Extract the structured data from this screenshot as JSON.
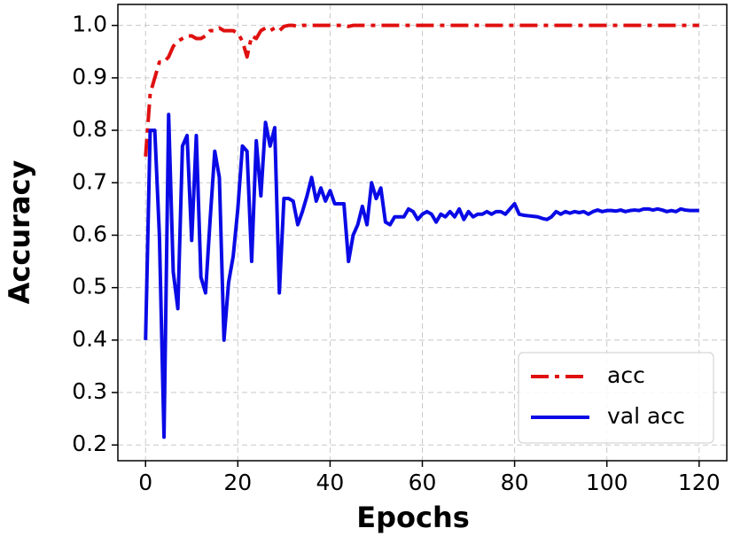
{
  "chart_data": {
    "type": "line",
    "xlabel": "Epochs",
    "ylabel": "Accuracy",
    "x": [
      0,
      1,
      2,
      3,
      4,
      5,
      6,
      7,
      8,
      9,
      10,
      11,
      12,
      13,
      14,
      15,
      16,
      17,
      18,
      19,
      20,
      21,
      22,
      23,
      24,
      25,
      26,
      27,
      28,
      29,
      30,
      31,
      32,
      33,
      34,
      35,
      36,
      37,
      38,
      39,
      40,
      41,
      42,
      43,
      44,
      45,
      46,
      47,
      48,
      49,
      50,
      51,
      52,
      53,
      54,
      55,
      56,
      57,
      58,
      59,
      60,
      61,
      62,
      63,
      64,
      65,
      66,
      67,
      68,
      69,
      70,
      71,
      72,
      73,
      74,
      75,
      76,
      77,
      78,
      79,
      80,
      81,
      82,
      83,
      84,
      85,
      86,
      87,
      88,
      89,
      90,
      91,
      92,
      93,
      94,
      95,
      96,
      97,
      98,
      99,
      100,
      101,
      102,
      103,
      104,
      105,
      106,
      107,
      108,
      109,
      110,
      111,
      112,
      113,
      114,
      115,
      116,
      117,
      118,
      119,
      120
    ],
    "series": [
      {
        "name": "acc",
        "color": "#e01010",
        "style": "dashdot",
        "values": [
          0.75,
          0.87,
          0.9,
          0.93,
          0.93,
          0.94,
          0.96,
          0.97,
          0.975,
          0.98,
          0.98,
          0.975,
          0.975,
          0.98,
          0.99,
          0.99,
          0.995,
          0.99,
          0.99,
          0.99,
          0.985,
          0.97,
          0.94,
          0.98,
          0.975,
          0.99,
          0.995,
          0.99,
          0.995,
          0.99,
          0.998,
          1.0,
          1.0,
          0.998,
          1.0,
          1.0,
          1.0,
          1.0,
          1.0,
          1.0,
          1.0,
          1.0,
          1.0,
          1.0,
          0.998,
          1.0,
          1.0,
          1.0,
          1.0,
          1.0,
          1.0,
          1.0,
          1.0,
          1.0,
          1.0,
          1.0,
          1.0,
          1.0,
          1.0,
          1.0,
          1.0,
          1.0,
          1.0,
          1.0,
          1.0,
          1.0,
          1.0,
          1.0,
          1.0,
          1.0,
          1.0,
          1.0,
          1.0,
          1.0,
          1.0,
          1.0,
          1.0,
          1.0,
          1.0,
          1.0,
          1.0,
          1.0,
          1.0,
          1.0,
          1.0,
          1.0,
          1.0,
          1.0,
          1.0,
          1.0,
          1.0,
          1.0,
          1.0,
          1.0,
          1.0,
          1.0,
          1.0,
          1.0,
          1.0,
          1.0,
          1.0,
          1.0,
          1.0,
          1.0,
          1.0,
          1.0,
          1.0,
          1.0,
          1.0,
          1.0,
          1.0,
          1.0,
          1.0,
          1.0,
          1.0,
          1.0,
          1.0,
          1.0,
          1.0,
          1.0,
          1.0
        ]
      },
      {
        "name": "val acc",
        "color": "#0a0ae6",
        "style": "solid",
        "values": [
          0.4,
          0.8,
          0.8,
          0.6,
          0.215,
          0.83,
          0.53,
          0.46,
          0.77,
          0.79,
          0.59,
          0.79,
          0.52,
          0.49,
          0.63,
          0.76,
          0.71,
          0.4,
          0.51,
          0.56,
          0.65,
          0.77,
          0.76,
          0.55,
          0.78,
          0.675,
          0.815,
          0.77,
          0.805,
          0.49,
          0.67,
          0.67,
          0.665,
          0.62,
          0.645,
          0.675,
          0.71,
          0.665,
          0.69,
          0.665,
          0.685,
          0.66,
          0.66,
          0.66,
          0.55,
          0.6,
          0.62,
          0.655,
          0.62,
          0.7,
          0.67,
          0.69,
          0.625,
          0.62,
          0.635,
          0.635,
          0.635,
          0.65,
          0.645,
          0.63,
          0.64,
          0.645,
          0.64,
          0.625,
          0.64,
          0.635,
          0.645,
          0.635,
          0.65,
          0.63,
          0.645,
          0.635,
          0.64,
          0.64,
          0.645,
          0.64,
          0.645,
          0.645,
          0.64,
          0.65,
          0.66,
          0.64,
          0.638,
          0.637,
          0.636,
          0.635,
          0.632,
          0.63,
          0.635,
          0.645,
          0.64,
          0.645,
          0.642,
          0.645,
          0.643,
          0.645,
          0.64,
          0.645,
          0.648,
          0.645,
          0.647,
          0.647,
          0.646,
          0.648,
          0.645,
          0.647,
          0.648,
          0.647,
          0.65,
          0.65,
          0.648,
          0.65,
          0.648,
          0.645,
          0.647,
          0.645,
          0.65,
          0.648,
          0.647,
          0.647,
          0.647
        ]
      }
    ],
    "xlim": [
      -6,
      126
    ],
    "ylim": [
      0.17,
      1.04
    ],
    "xticks": [
      0,
      20,
      40,
      60,
      80,
      100,
      120
    ],
    "yticks": [
      0.2,
      0.3,
      0.4,
      0.5,
      0.6,
      0.7,
      0.8,
      0.9,
      {
        "value": 1,
        "label": "1.0"
      }
    ],
    "grid": true,
    "legend": "lower right"
  }
}
